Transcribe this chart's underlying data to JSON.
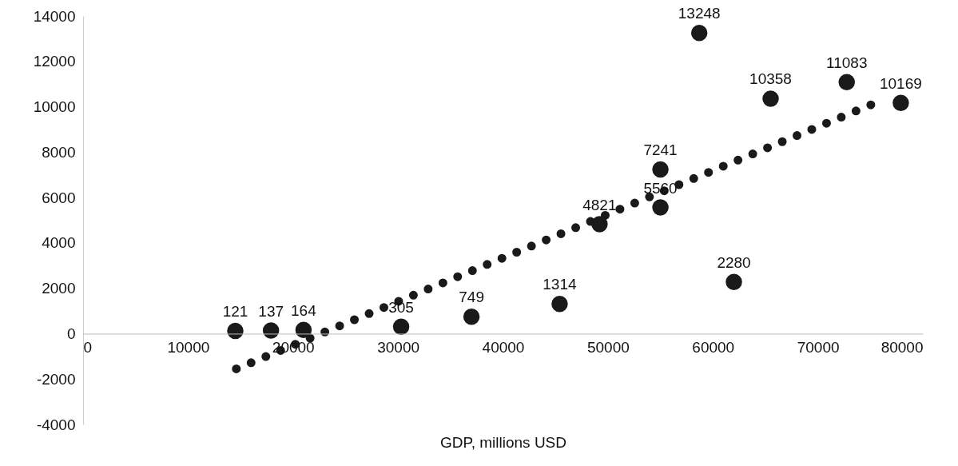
{
  "chart_data": {
    "type": "scatter",
    "xlabel": "GDP, millions USD",
    "x": [
      14500,
      17900,
      21000,
      30300,
      37000,
      45400,
      49200,
      55000,
      55000,
      62000,
      58700,
      65500,
      72750,
      77900
    ],
    "series": [
      {
        "color": "#1a1a1a",
        "marker": "circle",
        "values": [
          121,
          137,
          164,
          305,
          749,
          1314,
          4821,
          7241,
          5560,
          2280,
          13248,
          10358,
          11083,
          10169
        ],
        "value_labels": [
          "121",
          "137",
          "164",
          "305",
          "749",
          "1314",
          "4821",
          "7241",
          "5560",
          "2280",
          "13248",
          "10358",
          "11083",
          "10169"
        ]
      },
      {
        "type": "line",
        "color": "#1a1a1a",
        "line_style": "dotted",
        "x": [
          14600,
          75900
        ],
        "values": [
          -1550,
          10250
        ]
      }
    ],
    "xlim": [
      0,
      80000
    ],
    "xticks": [
      0,
      10000,
      20000,
      30000,
      40000,
      50000,
      60000,
      70000,
      80000
    ],
    "ylim": [
      -4000,
      14000
    ],
    "yticks": [
      -4000,
      -2000,
      0,
      2000,
      4000,
      6000,
      8000,
      10000,
      12000,
      14000
    ],
    "grid": false
  }
}
